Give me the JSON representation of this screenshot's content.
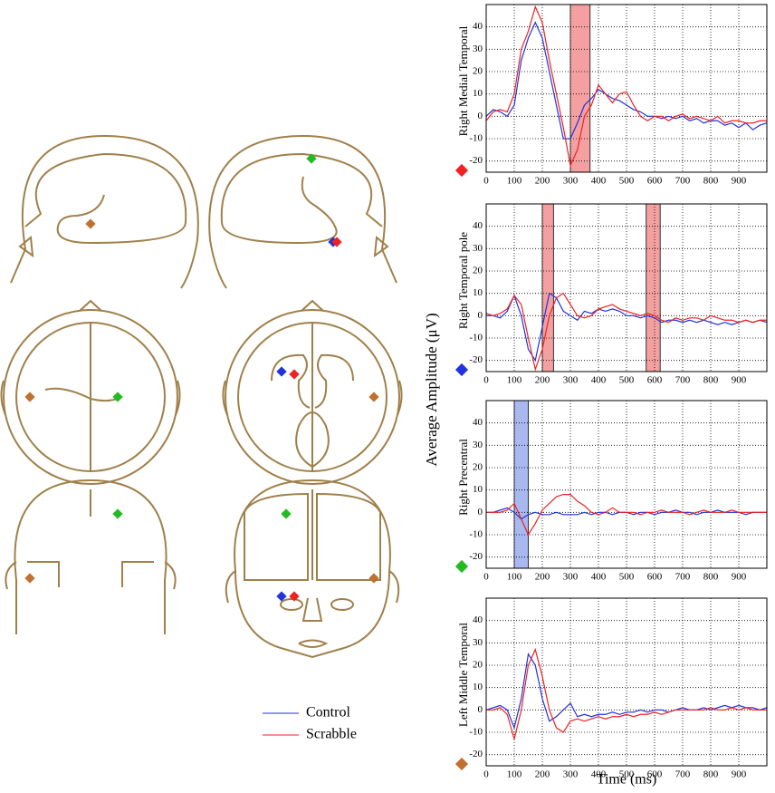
{
  "ylabel": "Average Amplitude (μV)",
  "xlabel": "Time (ms)",
  "chart_data": [
    {
      "type": "line",
      "ylabel": "Right Medial Temporal",
      "marker_color": "#ee2222",
      "x": [
        0,
        25,
        50,
        75,
        100,
        125,
        150,
        175,
        200,
        225,
        250,
        275,
        300,
        325,
        350,
        375,
        400,
        425,
        450,
        475,
        500,
        525,
        550,
        575,
        600,
        625,
        650,
        675,
        700,
        725,
        750,
        775,
        800,
        825,
        850,
        875,
        900,
        925,
        950,
        975,
        1000
      ],
      "series": [
        {
          "name": "Control",
          "color": "#2233dd",
          "values": [
            0,
            3,
            2,
            0,
            5,
            25,
            35,
            42,
            35,
            20,
            5,
            -10,
            -10,
            -3,
            5,
            8,
            12,
            10,
            8,
            7,
            5,
            3,
            2,
            0,
            0,
            -1,
            0,
            -1,
            0,
            -2,
            -1,
            -3,
            -2,
            -2,
            -4,
            -3,
            -5,
            -3,
            -6,
            -4,
            -3
          ]
        },
        {
          "name": "Scrabble",
          "color": "#ee2222",
          "values": [
            -2,
            2,
            3,
            2,
            10,
            30,
            38,
            49,
            42,
            25,
            10,
            -5,
            -22,
            -15,
            0,
            5,
            14,
            10,
            6,
            10,
            11,
            5,
            0,
            -2,
            0,
            0,
            -2,
            0,
            1,
            -1,
            0,
            -1,
            -2,
            0,
            -3,
            -2,
            -2,
            -3,
            -3,
            -2,
            -2
          ]
        }
      ],
      "xlim": [
        0,
        1000
      ],
      "ylim": [
        -25,
        50
      ],
      "xticks": [
        0,
        100,
        200,
        300,
        400,
        500,
        600,
        700,
        800,
        900
      ],
      "yticks": [
        -20,
        -10,
        0,
        10,
        20,
        30,
        40
      ],
      "grid": true,
      "highlights": [
        {
          "x": [
            300,
            370
          ],
          "color": "#f4a0a0"
        }
      ]
    },
    {
      "type": "line",
      "ylabel": "Right Temporal pole",
      "marker_color": "#2233dd",
      "x": [
        0,
        25,
        50,
        75,
        100,
        125,
        150,
        175,
        200,
        225,
        250,
        275,
        300,
        325,
        350,
        375,
        400,
        425,
        450,
        475,
        500,
        525,
        550,
        575,
        600,
        625,
        650,
        675,
        700,
        725,
        750,
        775,
        800,
        825,
        850,
        875,
        900,
        925,
        950,
        975,
        1000
      ],
      "series": [
        {
          "name": "Control",
          "color": "#2233dd",
          "values": [
            0,
            0,
            -1,
            2,
            9,
            0,
            -15,
            -20,
            -5,
            10,
            8,
            2,
            0,
            -2,
            2,
            1,
            3,
            2,
            3,
            2,
            0,
            0,
            -1,
            0,
            -1,
            -3,
            -2,
            -2,
            -3,
            -2,
            -3,
            -2,
            -3,
            -4,
            -3,
            -4,
            -3,
            -2,
            -3,
            -2,
            -3
          ]
        },
        {
          "name": "Scrabble",
          "color": "#ee2222",
          "values": [
            1,
            0,
            1,
            3,
            9,
            5,
            -10,
            -24,
            -15,
            0,
            8,
            10,
            5,
            0,
            -1,
            0,
            3,
            4,
            5,
            3,
            2,
            1,
            0,
            1,
            0,
            -2,
            -3,
            -1,
            -2,
            -1,
            -1,
            -2,
            0,
            -1,
            -2,
            -2,
            -3,
            -2,
            -3,
            -2,
            -2
          ]
        }
      ],
      "xlim": [
        0,
        1000
      ],
      "ylim": [
        -25,
        50
      ],
      "xticks": [
        0,
        100,
        200,
        300,
        400,
        500,
        600,
        700,
        800,
        900
      ],
      "yticks": [
        -20,
        -10,
        0,
        10,
        20,
        30,
        40
      ],
      "grid": true,
      "highlights": [
        {
          "x": [
            200,
            240
          ],
          "color": "#f4a0a0"
        },
        {
          "x": [
            570,
            620
          ],
          "color": "#f4a0a0"
        }
      ]
    },
    {
      "type": "line",
      "ylabel": "Right Precentral",
      "marker_color": "#22bb22",
      "x": [
        0,
        25,
        50,
        75,
        100,
        125,
        150,
        175,
        200,
        225,
        250,
        275,
        300,
        325,
        350,
        375,
        400,
        425,
        450,
        475,
        500,
        525,
        550,
        575,
        600,
        625,
        650,
        675,
        700,
        725,
        750,
        775,
        800,
        825,
        850,
        875,
        900,
        925,
        950,
        975,
        1000
      ],
      "series": [
        {
          "name": "Control",
          "color": "#2233dd",
          "values": [
            0,
            0,
            1,
            2,
            0,
            -3,
            -1,
            0,
            -1,
            -1,
            0,
            -1,
            -1,
            -1,
            0,
            -1,
            0,
            0,
            -1,
            0,
            0,
            -1,
            0,
            0,
            -1,
            0,
            0,
            1,
            0,
            0,
            -1,
            0,
            0,
            1,
            0,
            0,
            0,
            -1,
            0,
            0,
            0
          ]
        },
        {
          "name": "Scrabble",
          "color": "#ee2222",
          "values": [
            0,
            0,
            0,
            1,
            4,
            -3,
            -10,
            -5,
            1,
            4,
            7,
            8,
            8,
            5,
            3,
            0,
            -1,
            0,
            2,
            0,
            0,
            0,
            -1,
            0,
            0,
            1,
            0,
            0,
            0,
            -1,
            0,
            1,
            0,
            0,
            0,
            1,
            0,
            0,
            0,
            0,
            0
          ]
        }
      ],
      "xlim": [
        0,
        1000
      ],
      "ylim": [
        -25,
        50
      ],
      "xticks": [
        0,
        100,
        200,
        300,
        400,
        500,
        600,
        700,
        800,
        900
      ],
      "yticks": [
        -20,
        -10,
        0,
        10,
        20,
        30,
        40
      ],
      "grid": true,
      "highlights": [
        {
          "x": [
            100,
            150
          ],
          "color": "#a8b8f0"
        }
      ]
    },
    {
      "type": "line",
      "ylabel": "Left Middle Temporal",
      "marker_color": "#c07030",
      "x": [
        0,
        25,
        50,
        75,
        100,
        125,
        150,
        175,
        200,
        225,
        250,
        275,
        300,
        325,
        350,
        375,
        400,
        425,
        450,
        475,
        500,
        525,
        550,
        575,
        600,
        625,
        650,
        675,
        700,
        725,
        750,
        775,
        800,
        825,
        850,
        875,
        900,
        925,
        950,
        975,
        1000
      ],
      "series": [
        {
          "name": "Control",
          "color": "#2233dd",
          "values": [
            0,
            1,
            2,
            0,
            -8,
            5,
            25,
            20,
            5,
            -5,
            -3,
            0,
            3,
            -3,
            -2,
            -3,
            -2,
            -2,
            -1,
            -2,
            -1,
            -1,
            0,
            -1,
            0,
            0,
            -1,
            0,
            1,
            0,
            0,
            1,
            0,
            1,
            2,
            1,
            2,
            1,
            1,
            0,
            1
          ]
        },
        {
          "name": "Scrabble",
          "color": "#ee2222",
          "values": [
            0,
            0,
            1,
            -2,
            -13,
            0,
            20,
            27,
            15,
            0,
            -8,
            -10,
            -5,
            -4,
            -5,
            -4,
            -3,
            -4,
            -3,
            -3,
            -2,
            -3,
            -2,
            -2,
            -1,
            -2,
            -1,
            0,
            0,
            0,
            0,
            0,
            1,
            0,
            0,
            1,
            0,
            1,
            0,
            0,
            0
          ]
        }
      ],
      "xlim": [
        0,
        1000
      ],
      "ylim": [
        -25,
        50
      ],
      "xticks": [
        0,
        100,
        200,
        300,
        400,
        500,
        600,
        700,
        800,
        900
      ],
      "yticks": [
        -20,
        -10,
        0,
        10,
        20,
        30,
        40
      ],
      "grid": true,
      "highlights": []
    }
  ]
}
